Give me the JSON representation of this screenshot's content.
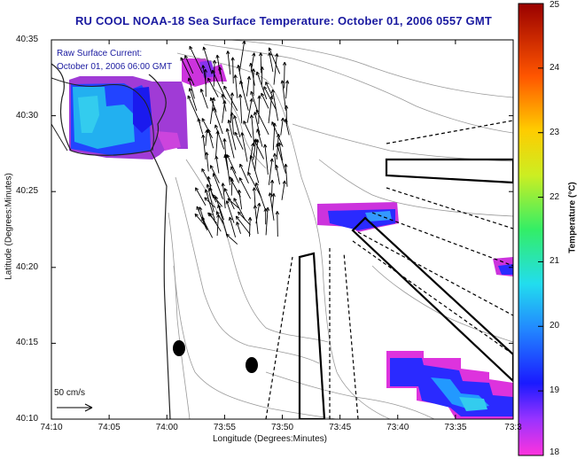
{
  "title": {
    "source": "RU COOL",
    "satellite": "NOAA-18",
    "product": "Sea Surface Temperature:",
    "datetime": "October 01, 2006 0557 GMT"
  },
  "current_label": {
    "line1": "Raw Surface Current:",
    "line2": "October 01, 2006 06:00 GMT"
  },
  "axes": {
    "xlabel": "Longitude (Degrees:Minutes)",
    "ylabel": "Latitude (Degrees:Minutes)",
    "x_ticks": [
      "74:10",
      "74:05",
      "74:00",
      "73:55",
      "73:50",
      "73:45",
      "73:40",
      "73:35",
      "73:3"
    ],
    "y_ticks": [
      "40:35",
      "40:30",
      "40:25",
      "40:20",
      "40:15",
      "40:10"
    ]
  },
  "colorbar": {
    "label": "Temperature (°C)",
    "ticks": [
      "25",
      "24",
      "23",
      "22",
      "21",
      "20",
      "19",
      "18"
    ],
    "min": 18,
    "max": 25
  },
  "scale_arrow_label": "50 cm/s"
}
